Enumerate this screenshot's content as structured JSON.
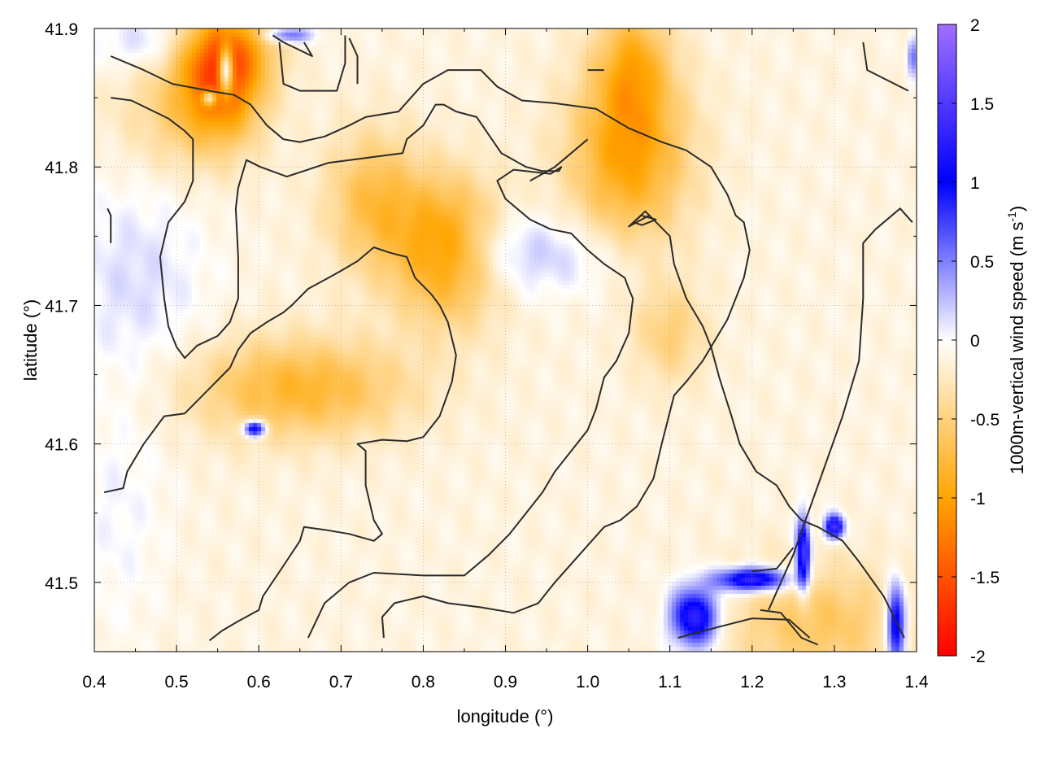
{
  "chart_data": {
    "type": "heatmap",
    "xlabel": "longitude (°)",
    "ylabel": "latitude (°)",
    "colorbar_label": "1000m-vertical wind speed (m s",
    "colorbar_label_sup": "-1",
    "colorbar_label_end": ")",
    "xlim": [
      0.4,
      1.4
    ],
    "ylim": [
      41.45,
      41.9
    ],
    "xticks": [
      0.4,
      0.5,
      0.6,
      0.7,
      0.8,
      0.9,
      1.0,
      1.1,
      1.2,
      1.3,
      1.4
    ],
    "xtick_labels": [
      "0.4",
      "0.5",
      "0.6",
      "0.7",
      "0.8",
      "0.9",
      "1.0",
      "1.1",
      "1.2",
      "1.3",
      "1.4"
    ],
    "yticks": [
      41.5,
      41.6,
      41.7,
      41.8,
      41.9
    ],
    "ytick_labels": [
      "41.5",
      "41.6",
      "41.7",
      "41.8",
      "41.9"
    ],
    "crange": [
      -2,
      2
    ],
    "cticks": [
      2,
      1.5,
      1,
      0.5,
      0,
      -0.5,
      -1,
      -1.5,
      -2
    ],
    "ctick_labels": [
      "2",
      "1.5",
      "1",
      "0.5",
      "0",
      "-0.5",
      "-1",
      "-1.5",
      "-2"
    ],
    "palette": [
      {
        "v": -2,
        "color": "#ff0000"
      },
      {
        "v": -1,
        "color": "#ffa500"
      },
      {
        "v": 0,
        "color": "#ffffff"
      },
      {
        "v": 1,
        "color": "#0000ff"
      },
      {
        "v": 2,
        "color": "#a070ff"
      }
    ],
    "grid": true,
    "field_blobs": [
      {
        "x": 0.555,
        "y": 41.86,
        "sx": 0.035,
        "sy": 0.03,
        "v": -1.1
      },
      {
        "x": 0.56,
        "y": 41.885,
        "sx": 0.04,
        "sy": 0.02,
        "v": -0.7
      },
      {
        "x": 0.83,
        "y": 41.74,
        "sx": 0.045,
        "sy": 0.035,
        "v": -1.0
      },
      {
        "x": 0.74,
        "y": 41.775,
        "sx": 0.04,
        "sy": 0.035,
        "v": -0.6
      },
      {
        "x": 0.65,
        "y": 41.64,
        "sx": 0.09,
        "sy": 0.025,
        "v": -0.7
      },
      {
        "x": 1.05,
        "y": 41.81,
        "sx": 0.05,
        "sy": 0.045,
        "v": -0.9
      },
      {
        "x": 1.055,
        "y": 41.875,
        "sx": 0.03,
        "sy": 0.03,
        "v": -0.6
      },
      {
        "x": 1.1,
        "y": 41.68,
        "sx": 0.03,
        "sy": 0.025,
        "v": -0.4
      },
      {
        "x": 0.5,
        "y": 41.84,
        "sx": 0.05,
        "sy": 0.03,
        "v": -0.35
      },
      {
        "x": 1.28,
        "y": 41.47,
        "sx": 0.08,
        "sy": 0.03,
        "v": -0.5
      },
      {
        "x": 0.45,
        "y": 41.72,
        "sx": 0.06,
        "sy": 0.05,
        "v": 0.25
      },
      {
        "x": 0.88,
        "y": 41.74,
        "sx": 0.05,
        "sy": 0.02,
        "v": 0.3
      },
      {
        "x": 0.97,
        "y": 41.735,
        "sx": 0.06,
        "sy": 0.02,
        "v": 0.25
      },
      {
        "x": 0.47,
        "y": 41.89,
        "sx": 0.05,
        "sy": 0.015,
        "v": 0.3
      },
      {
        "x": 0.43,
        "y": 41.55,
        "sx": 0.04,
        "sy": 0.06,
        "v": 0.15
      }
    ],
    "strong_updrafts": [
      {
        "x": 0.56,
        "y": 41.87,
        "sx": 0.006,
        "sy": 0.012,
        "v": 1.6
      },
      {
        "x": 0.54,
        "y": 41.85,
        "sx": 0.006,
        "sy": 0.004,
        "v": 1.2
      },
      {
        "x": 0.595,
        "y": 41.611,
        "sx": 0.009,
        "sy": 0.004,
        "v": 1.5
      },
      {
        "x": 1.13,
        "y": 41.475,
        "sx": 0.02,
        "sy": 0.015,
        "v": 1.5
      },
      {
        "x": 1.2,
        "y": 41.502,
        "sx": 0.03,
        "sy": 0.006,
        "v": 1.6
      },
      {
        "x": 1.262,
        "y": 41.52,
        "sx": 0.006,
        "sy": 0.018,
        "v": 1.7
      },
      {
        "x": 1.3,
        "y": 41.54,
        "sx": 0.008,
        "sy": 0.006,
        "v": 1.6
      },
      {
        "x": 1.375,
        "y": 41.47,
        "sx": 0.008,
        "sy": 0.02,
        "v": 1.5
      },
      {
        "x": 0.635,
        "y": 41.895,
        "sx": 0.02,
        "sy": 0.004,
        "v": 0.8
      },
      {
        "x": 1.395,
        "y": 41.88,
        "sx": 0.004,
        "sy": 0.01,
        "v": 0.7
      }
    ],
    "contours": [
      [
        [
          0.42,
          41.88
        ],
        [
          0.46,
          41.87
        ],
        [
          0.495,
          41.86
        ],
        [
          0.54,
          41.855
        ],
        [
          0.57,
          41.852
        ],
        [
          0.59,
          41.845
        ],
        [
          0.61,
          41.83
        ],
        [
          0.63,
          41.82
        ],
        [
          0.65,
          41.818
        ],
        [
          0.68,
          41.822
        ],
        [
          0.71,
          41.83
        ],
        [
          0.73,
          41.836
        ],
        [
          0.77,
          41.84
        ],
        [
          0.8,
          41.86
        ],
        [
          0.83,
          41.87
        ],
        [
          0.87,
          41.87
        ],
        [
          0.89,
          41.858
        ],
        [
          0.92,
          41.848
        ],
        [
          0.96,
          41.846
        ],
        [
          1.01,
          41.842
        ],
        [
          1.05,
          41.828
        ],
        [
          1.09,
          41.818
        ],
        [
          1.12,
          41.812
        ],
        [
          1.15,
          41.8
        ],
        [
          1.17,
          41.78
        ],
        [
          1.18,
          41.765
        ],
        [
          1.19,
          41.76
        ],
        [
          1.197,
          41.74
        ],
        [
          1.19,
          41.72
        ],
        [
          1.17,
          41.69
        ],
        [
          1.14,
          41.66
        ],
        [
          1.12,
          41.645
        ],
        [
          1.105,
          41.635
        ],
        [
          1.09,
          41.6
        ],
        [
          1.08,
          41.575
        ],
        [
          1.06,
          41.555
        ],
        [
          1.04,
          41.545
        ],
        [
          1.02,
          41.54
        ],
        [
          0.99,
          41.52
        ],
        [
          0.96,
          41.5
        ],
        [
          0.94,
          41.485
        ],
        [
          0.91,
          41.478
        ],
        [
          0.87,
          41.482
        ],
        [
          0.83,
          41.485
        ],
        [
          0.8,
          41.49
        ],
        [
          0.765,
          41.485
        ],
        [
          0.75,
          41.475
        ],
        [
          0.752,
          41.46
        ]
      ],
      [
        [
          0.42,
          41.85
        ],
        [
          0.445,
          41.848
        ],
        [
          0.49,
          41.835
        ],
        [
          0.51,
          41.826
        ],
        [
          0.52,
          41.82
        ],
        [
          0.52,
          41.79
        ],
        [
          0.51,
          41.775
        ],
        [
          0.49,
          41.76
        ],
        [
          0.48,
          41.735
        ],
        [
          0.485,
          41.705
        ],
        [
          0.49,
          41.685
        ],
        [
          0.5,
          41.67
        ],
        [
          0.51,
          41.662
        ],
        [
          0.525,
          41.671
        ],
        [
          0.55,
          41.678
        ],
        [
          0.565,
          41.688
        ],
        [
          0.575,
          41.705
        ],
        [
          0.575,
          41.735
        ],
        [
          0.572,
          41.77
        ],
        [
          0.575,
          41.785
        ],
        [
          0.585,
          41.805
        ],
        [
          0.602,
          41.8
        ],
        [
          0.634,
          41.793
        ],
        [
          0.685,
          41.803
        ],
        [
          0.724,
          41.806
        ],
        [
          0.775,
          41.81
        ],
        [
          0.78,
          41.82
        ],
        [
          0.8,
          41.83
        ],
        [
          0.815,
          41.845
        ],
        [
          0.825,
          41.845
        ],
        [
          0.84,
          41.84
        ],
        [
          0.865,
          41.836
        ],
        [
          0.895,
          41.81
        ],
        [
          0.925,
          41.8
        ],
        [
          0.945,
          41.797
        ],
        [
          0.965,
          41.797
        ],
        [
          0.968,
          41.8
        ],
        [
          0.955,
          41.795
        ],
        [
          0.91,
          41.798
        ],
        [
          0.89,
          41.79
        ],
        [
          0.9,
          41.777
        ],
        [
          0.93,
          41.762
        ],
        [
          0.955,
          41.755
        ],
        [
          0.98,
          41.752
        ],
        [
          1.0,
          41.74
        ],
        [
          1.02,
          41.73
        ],
        [
          1.045,
          41.72
        ],
        [
          1.05,
          41.712
        ],
        [
          1.055,
          41.705
        ],
        [
          1.05,
          41.68
        ],
        [
          1.035,
          41.66
        ],
        [
          1.02,
          41.648
        ],
        [
          1.01,
          41.625
        ],
        [
          1.0,
          41.61
        ],
        [
          0.98,
          41.595
        ],
        [
          0.96,
          41.58
        ],
        [
          0.945,
          41.565
        ],
        [
          0.925,
          41.55
        ],
        [
          0.905,
          41.535
        ],
        [
          0.88,
          41.52
        ],
        [
          0.85,
          41.505
        ],
        [
          0.8,
          41.505
        ],
        [
          0.74,
          41.507
        ],
        [
          0.71,
          41.5
        ],
        [
          0.68,
          41.485
        ],
        [
          0.66,
          41.46
        ]
      ],
      [
        [
          0.412,
          41.565
        ],
        [
          0.435,
          41.568
        ],
        [
          0.44,
          41.58
        ],
        [
          0.46,
          41.6
        ],
        [
          0.485,
          41.62
        ],
        [
          0.51,
          41.622
        ],
        [
          0.54,
          41.64
        ],
        [
          0.565,
          41.655
        ],
        [
          0.575,
          41.668
        ],
        [
          0.59,
          41.68
        ],
        [
          0.61,
          41.688
        ],
        [
          0.63,
          41.695
        ],
        [
          0.64,
          41.7
        ],
        [
          0.66,
          41.712
        ],
        [
          0.685,
          41.72
        ],
        [
          0.7,
          41.725
        ],
        [
          0.72,
          41.732
        ],
        [
          0.74,
          41.742
        ],
        [
          0.76,
          41.738
        ],
        [
          0.78,
          41.735
        ],
        [
          0.79,
          41.72
        ],
        [
          0.81,
          41.708
        ],
        [
          0.82,
          41.7
        ],
        [
          0.83,
          41.688
        ],
        [
          0.84,
          41.664
        ],
        [
          0.835,
          41.645
        ],
        [
          0.82,
          41.62
        ],
        [
          0.8,
          41.605
        ],
        [
          0.78,
          41.602
        ],
        [
          0.75,
          41.603
        ],
        [
          0.72,
          41.6
        ],
        [
          0.73,
          41.595
        ],
        [
          0.73,
          41.57
        ],
        [
          0.74,
          41.545
        ],
        [
          0.75,
          41.535
        ],
        [
          0.74,
          41.53
        ],
        [
          0.71,
          41.535
        ],
        [
          0.68,
          41.538
        ],
        [
          0.655,
          41.54
        ],
        [
          0.65,
          41.53
        ],
        [
          0.63,
          41.512
        ],
        [
          0.605,
          41.49
        ],
        [
          0.6,
          41.48
        ],
        [
          0.575,
          41.472
        ],
        [
          0.555,
          41.465
        ],
        [
          0.54,
          41.458
        ]
      ],
      [
        [
          1.0,
          41.82
        ],
        [
          0.96,
          41.8
        ],
        [
          0.93,
          41.79
        ]
      ],
      [
        [
          1.21,
          41.48
        ],
        [
          1.235,
          41.478
        ],
        [
          1.26,
          41.46
        ],
        [
          1.28,
          41.455
        ]
      ],
      [
        [
          1.11,
          41.46
        ],
        [
          1.16,
          41.468
        ],
        [
          1.2,
          41.474
        ],
        [
          1.245,
          41.473
        ],
        [
          1.27,
          41.46
        ]
      ],
      [
        [
          1.25,
          41.525
        ],
        [
          1.23,
          41.51
        ],
        [
          1.2,
          41.508
        ]
      ],
      [
        [
          1.335,
          41.89
        ],
        [
          1.34,
          41.87
        ],
        [
          1.39,
          41.855
        ]
      ],
      [
        [
          0.617,
          41.895
        ],
        [
          0.63,
          41.89
        ],
        [
          0.665,
          41.88
        ],
        [
          0.655,
          41.89
        ]
      ],
      [
        [
          0.71,
          41.893
        ],
        [
          0.72,
          41.88
        ],
        [
          0.72,
          41.86
        ]
      ],
      [
        [
          0.625,
          41.89
        ],
        [
          0.63,
          41.86
        ],
        [
          0.65,
          41.855
        ],
        [
          0.695,
          41.855
        ],
        [
          0.705,
          41.875
        ],
        [
          0.705,
          41.895
        ]
      ],
      [
        [
          0.416,
          41.77
        ],
        [
          0.42,
          41.765
        ],
        [
          0.42,
          41.745
        ]
      ],
      [
        [
          1.35,
          41.755
        ],
        [
          1.38,
          41.77
        ],
        [
          1.395,
          41.76
        ]
      ],
      [
        [
          1.33,
          41.66
        ],
        [
          1.335,
          41.705
        ],
        [
          1.335,
          41.745
        ],
        [
          1.35,
          41.755
        ]
      ],
      [
        [
          1.385,
          41.46
        ],
        [
          1.36,
          41.49
        ],
        [
          1.33,
          41.515
        ],
        [
          1.31,
          41.53
        ],
        [
          1.28,
          41.54
        ],
        [
          1.26,
          41.545
        ],
        [
          1.245,
          41.555
        ],
        [
          1.23,
          41.57
        ],
        [
          1.205,
          41.58
        ],
        [
          1.185,
          41.6
        ],
        [
          1.175,
          41.62
        ],
        [
          1.16,
          41.648
        ],
        [
          1.15,
          41.67
        ],
        [
          1.14,
          41.685
        ],
        [
          1.12,
          41.705
        ],
        [
          1.105,
          41.73
        ],
        [
          1.1,
          41.75
        ],
        [
          1.07,
          41.768
        ],
        [
          1.05,
          41.757
        ],
        [
          1.075,
          41.765
        ]
      ],
      [
        [
          1.056,
          41.76
        ],
        [
          1.065,
          41.765
        ],
        [
          1.083,
          41.762
        ],
        [
          1.066,
          41.758
        ],
        [
          1.056,
          41.76
        ]
      ],
      [
        [
          1.02,
          41.87
        ],
        [
          1.0,
          41.87
        ]
      ],
      [
        [
          1.22,
          41.48
        ],
        [
          1.25,
          41.52
        ],
        [
          1.31,
          41.62
        ],
        [
          1.33,
          41.66
        ]
      ]
    ]
  }
}
